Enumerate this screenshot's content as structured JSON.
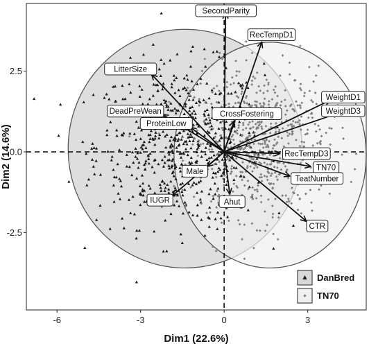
{
  "chart_data": {
    "type": "scatter",
    "subtype": "PCA biplot",
    "xlabel": "Dim1 (22.6%)",
    "ylabel": "Dim2 (14.6%)",
    "xlim": [
      -7.1,
      5.1
    ],
    "ylim": [
      -4.9,
      4.6
    ],
    "xticks": [
      -6,
      -3,
      0,
      3
    ],
    "yticks": [
      -2.5,
      0.0,
      2.5
    ],
    "tick_labels_x": [
      "-6",
      "-3",
      "0",
      "3"
    ],
    "tick_labels_y": [
      "-2.5",
      "0.0",
      "2.5"
    ],
    "grid": false,
    "reference_lines": {
      "x": 0,
      "y": 0,
      "style": "dashed"
    },
    "legend": {
      "placement": "bottom-right",
      "entries": [
        {
          "name": "DanBred",
          "marker": "triangle",
          "ellipse_fill": "#d8d8d8"
        },
        {
          "name": "TN70",
          "marker": "diamond",
          "ellipse_fill": "#f0f0f0"
        }
      ]
    },
    "series": [
      {
        "name": "DanBred",
        "marker": "triangle",
        "color": "#1a1a1a",
        "ellipse": {
          "center": [
            -1.4,
            0.1
          ],
          "semi_axes": [
            4.2,
            3.7
          ],
          "angle_deg": 0
        },
        "cloud": {
          "center": [
            -1.6,
            0.2
          ],
          "spread": [
            1.5,
            1.25
          ],
          "n": 620
        }
      },
      {
        "name": "TN70",
        "marker": "diamond",
        "color": "#808080",
        "ellipse": {
          "center": [
            1.65,
            -0.1
          ],
          "semi_axes": [
            3.45,
            3.5
          ],
          "angle_deg": 0
        },
        "cloud": {
          "center": [
            1.3,
            0.3
          ],
          "spread": [
            1.25,
            1.15
          ],
          "n": 640
        }
      }
    ],
    "variables": [
      {
        "name": "SecondParity",
        "x": 0.05,
        "y": 4.3
      },
      {
        "name": "RecTempD1",
        "x": 1.35,
        "y": 3.4
      },
      {
        "name": "LitterSize",
        "x": -2.6,
        "y": 2.4
      },
      {
        "name": "WeightD1",
        "x": 3.8,
        "y": 1.6
      },
      {
        "name": "WeightD3",
        "x": 4.1,
        "y": 1.2
      },
      {
        "name": "DeadPreWean",
        "x": -2.2,
        "y": 1.15
      },
      {
        "name": "CrossFostering",
        "x": 0.35,
        "y": 0.95
      },
      {
        "name": "ProteinLow",
        "x": -1.2,
        "y": 0.75
      },
      {
        "name": "RecTempD3",
        "x": 2.0,
        "y": -0.05
      },
      {
        "name": "TN70",
        "x": 3.1,
        "y": -0.45
      },
      {
        "name": "Male",
        "x": -0.6,
        "y": -0.45
      },
      {
        "name": "TeatNumber",
        "x": 2.35,
        "y": -0.75
      },
      {
        "name": "Ahut",
        "x": 0.2,
        "y": -1.3
      },
      {
        "name": "IUGR",
        "x": -1.85,
        "y": -1.35
      },
      {
        "name": "CTR",
        "x": 2.95,
        "y": -2.15
      }
    ]
  }
}
